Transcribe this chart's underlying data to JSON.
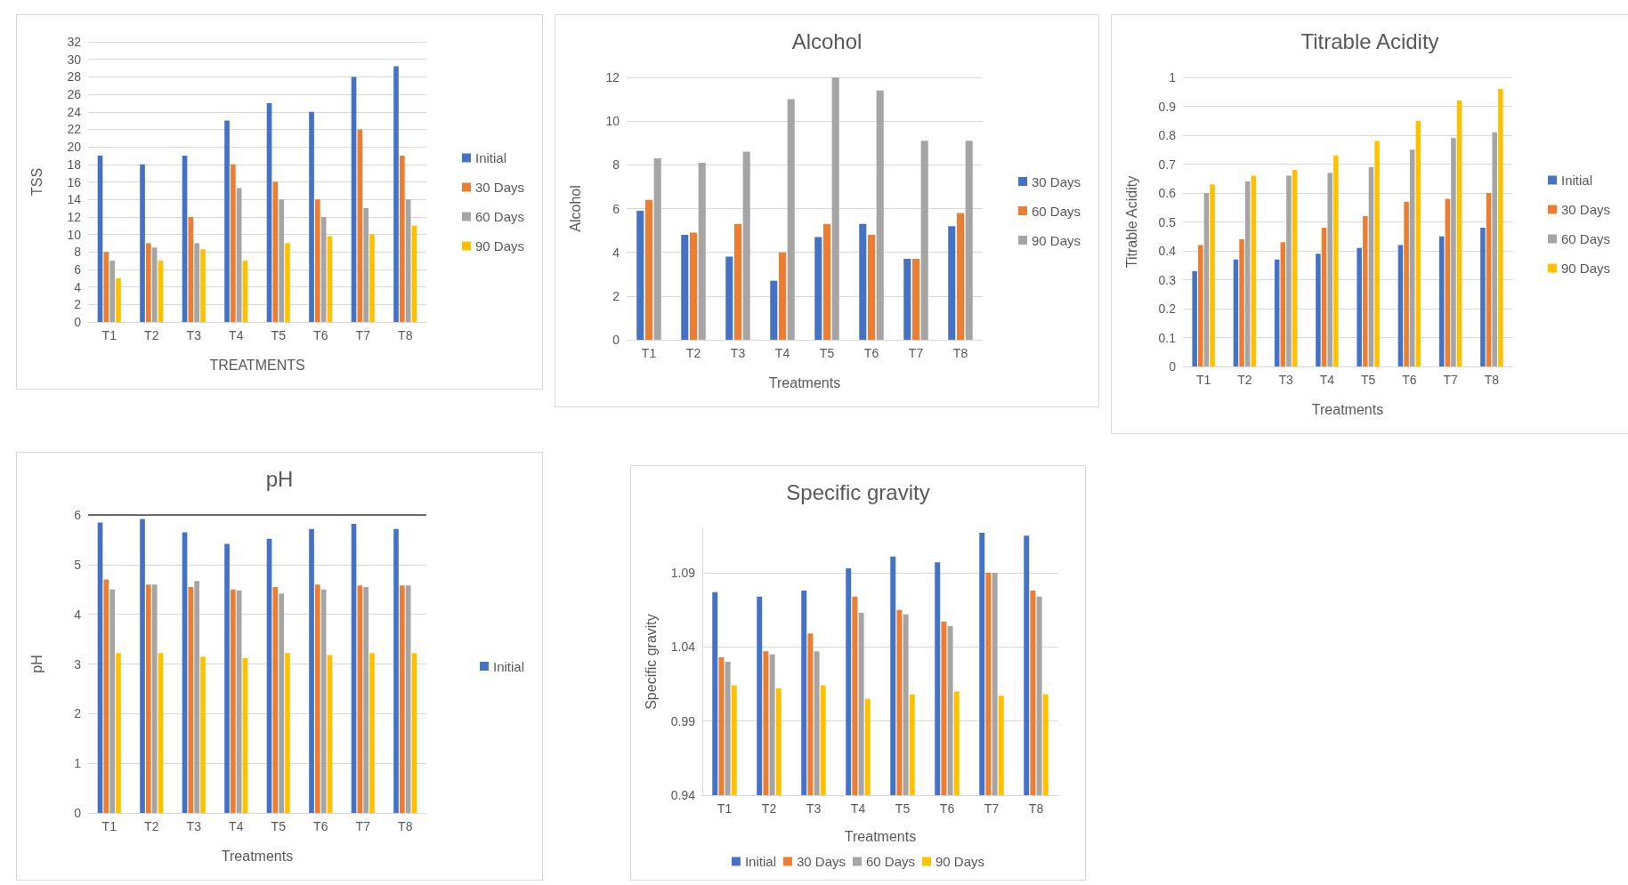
{
  "chart_data": [
    {
      "type": "bar",
      "ylabel": "TSS",
      "xlabel": "TREATMENTS",
      "categories": [
        "T1",
        "T2",
        "T3",
        "T4",
        "T5",
        "T6",
        "T7",
        "T8"
      ],
      "series": [
        {
          "name": "Initial",
          "color": "#4472c4",
          "values": [
            19,
            18,
            19,
            23,
            25,
            24,
            28,
            29.2
          ]
        },
        {
          "name": "30 Days",
          "color": "#ed7d31",
          "values": [
            8,
            9,
            12,
            18,
            16,
            14,
            22,
            19
          ]
        },
        {
          "name": "60 Days",
          "color": "#a5a5a5",
          "values": [
            7,
            8.5,
            9,
            15.3,
            14,
            12,
            13,
            14
          ]
        },
        {
          "name": "90 Days",
          "color": "#ffc000",
          "values": [
            5,
            7,
            8.3,
            7,
            9,
            9.8,
            10,
            11
          ]
        }
      ],
      "ylim": [
        0,
        32
      ],
      "yticks": [
        0,
        2,
        4,
        6,
        8,
        10,
        12,
        14,
        16,
        18,
        20,
        22,
        24,
        26,
        28,
        30,
        32
      ],
      "grid": "y",
      "legend": "right"
    },
    {
      "type": "bar",
      "title": "Alcohol",
      "ylabel": "Alcohol",
      "xlabel": "Treatments",
      "categories": [
        "T1",
        "T2",
        "T3",
        "T4",
        "T5",
        "T6",
        "T7",
        "T8"
      ],
      "series": [
        {
          "name": "30 Days",
          "color": "#4472c4",
          "values": [
            5.9,
            4.8,
            3.8,
            2.7,
            4.7,
            5.3,
            3.7,
            5.2
          ]
        },
        {
          "name": "60 Days",
          "color": "#ed7d31",
          "values": [
            6.4,
            4.9,
            5.3,
            4.0,
            5.3,
            4.8,
            3.7,
            5.8
          ]
        },
        {
          "name": "90 Days",
          "color": "#a5a5a5",
          "values": [
            8.3,
            8.1,
            8.6,
            11.0,
            12.0,
            11.4,
            9.1,
            9.1
          ]
        }
      ],
      "ylim": [
        0,
        12
      ],
      "yticks": [
        0,
        2,
        4,
        6,
        8,
        10,
        12
      ],
      "grid": "y",
      "legend": "right"
    },
    {
      "type": "bar",
      "title": "Titrable Acidity",
      "ylabel": "Titrable Acidity",
      "xlabel": "Treatments",
      "categories": [
        "T1",
        "T2",
        "T3",
        "T4",
        "T5",
        "T6",
        "T7",
        "T8"
      ],
      "series": [
        {
          "name": "Initial",
          "color": "#4472c4",
          "values": [
            0.33,
            0.37,
            0.37,
            0.39,
            0.41,
            0.42,
            0.45,
            0.48
          ]
        },
        {
          "name": "30 Days",
          "color": "#ed7d31",
          "values": [
            0.42,
            0.44,
            0.43,
            0.48,
            0.52,
            0.57,
            0.58,
            0.6
          ]
        },
        {
          "name": "60 Days",
          "color": "#a5a5a5",
          "values": [
            0.6,
            0.64,
            0.66,
            0.67,
            0.69,
            0.75,
            0.79,
            0.81
          ]
        },
        {
          "name": "90 Days",
          "color": "#ffc000",
          "values": [
            0.63,
            0.66,
            0.68,
            0.73,
            0.78,
            0.85,
            0.92,
            0.96
          ]
        }
      ],
      "ylim": [
        0,
        1
      ],
      "yticks": [
        0,
        0.1,
        0.2,
        0.3,
        0.4,
        0.5,
        0.6,
        0.7,
        0.8,
        0.9,
        1
      ],
      "grid": "y",
      "legend": "right"
    },
    {
      "type": "bar",
      "title": "pH",
      "ylabel": "pH",
      "xlabel": "Treatments",
      "categories": [
        "T1",
        "T2",
        "T3",
        "T4",
        "T5",
        "T6",
        "T7",
        "T8"
      ],
      "series": [
        {
          "name": "Initial",
          "color": "#4472c4",
          "values": [
            5.85,
            5.92,
            5.65,
            5.42,
            5.52,
            5.72,
            5.82,
            5.72
          ]
        },
        {
          "color": "#ed7d31",
          "values": [
            4.7,
            4.6,
            4.55,
            4.5,
            4.55,
            4.6,
            4.58,
            4.58
          ]
        },
        {
          "color": "#a5a5a5",
          "values": [
            4.5,
            4.6,
            4.67,
            4.48,
            4.42,
            4.5,
            4.55,
            4.58
          ]
        },
        {
          "color": "#ffc000",
          "values": [
            3.22,
            3.22,
            3.15,
            3.12,
            3.22,
            3.18,
            3.22,
            3.22
          ]
        }
      ],
      "ylim": [
        0,
        6
      ],
      "yticks": [
        0,
        1,
        2,
        3,
        4,
        5,
        6
      ],
      "grid": "y",
      "legend": "right",
      "ref_lines": [
        {
          "axis": "y",
          "value": 6,
          "color": "#404040"
        }
      ]
    },
    {
      "type": "bar",
      "title": "Specific gravity",
      "ylabel": "Specific gravity",
      "xlabel": "Treatments",
      "categories": [
        "T1",
        "T2",
        "T3",
        "T4",
        "T5",
        "T6",
        "T7",
        "T8"
      ],
      "series": [
        {
          "name": "Initial",
          "color": "#4472c4",
          "values": [
            1.077,
            1.074,
            1.078,
            1.093,
            1.101,
            1.097,
            1.117,
            1.115
          ]
        },
        {
          "name": "30 Days",
          "color": "#ed7d31",
          "values": [
            1.033,
            1.037,
            1.049,
            1.074,
            1.065,
            1.057,
            1.09,
            1.078
          ]
        },
        {
          "name": "60 Days",
          "color": "#a5a5a5",
          "values": [
            1.03,
            1.035,
            1.037,
            1.063,
            1.062,
            1.054,
            1.09,
            1.074
          ]
        },
        {
          "name": "90 Days",
          "color": "#ffc000",
          "values": [
            1.014,
            1.012,
            1.014,
            1.005,
            1.008,
            1.01,
            1.007,
            1.008
          ]
        }
      ],
      "ylim": [
        0.94,
        1.12
      ],
      "yticks": [
        0.94,
        0.99,
        1.04,
        1.09
      ],
      "grid": "y",
      "legend": "bottom"
    }
  ]
}
